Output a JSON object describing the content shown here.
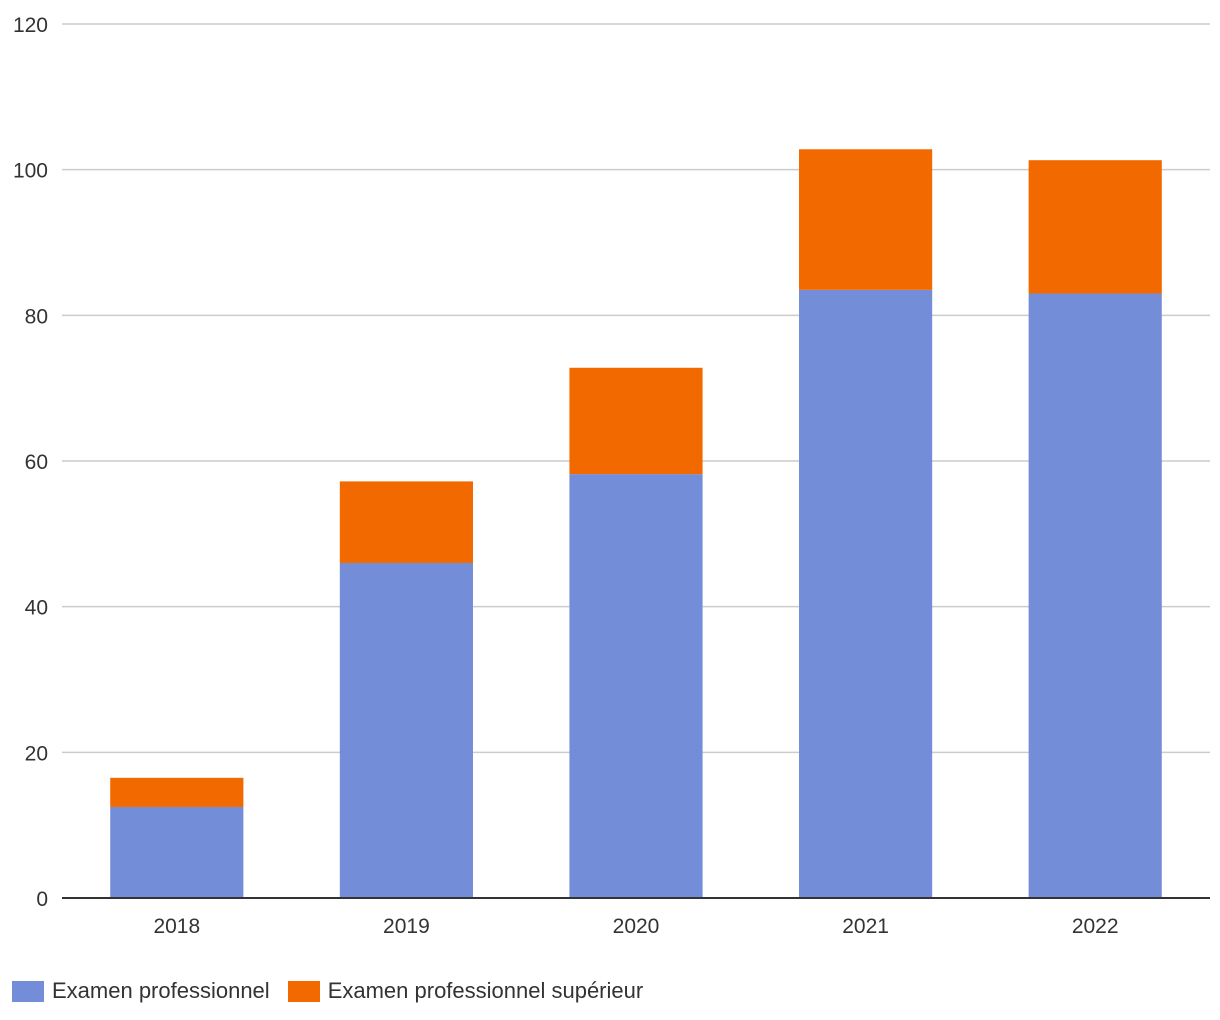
{
  "chart_data": {
    "type": "bar",
    "stacked": true,
    "categories": [
      "2018",
      "2019",
      "2020",
      "2021",
      "2022"
    ],
    "series": [
      {
        "name": "Examen professionnel",
        "color": "#748dd8",
        "values": [
          12.5,
          46,
          58.2,
          83.5,
          83
        ]
      },
      {
        "name": "Examen professionnel supérieur",
        "color": "#f26900",
        "values": [
          4,
          11.2,
          14.6,
          19.3,
          18.3
        ]
      }
    ],
    "ylim": [
      0,
      120
    ],
    "yticks": [
      "0",
      "20",
      "40",
      "60",
      "80",
      "100",
      "120"
    ],
    "grid": true,
    "legend_position": "bottom-left"
  }
}
